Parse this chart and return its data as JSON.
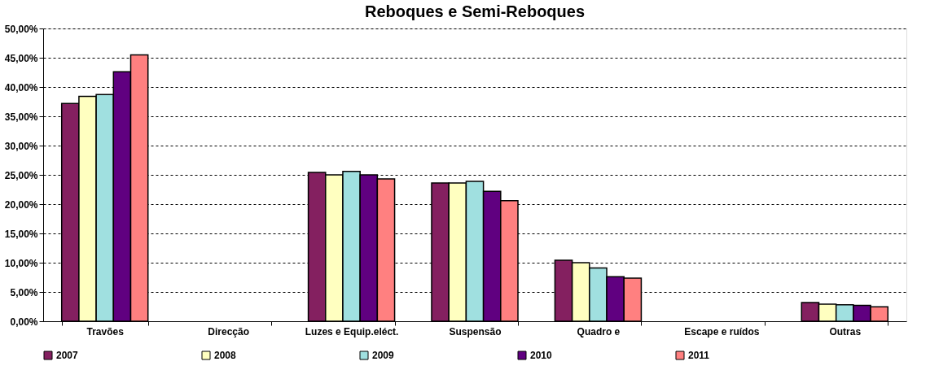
{
  "chart_data": {
    "type": "bar",
    "title": "Reboques e Semi-Reboques",
    "categories": [
      "Travões",
      "Direcção",
      "Luzes e Equip.eléct.",
      "Suspensão",
      "Quadro e",
      "Escape e ruídos",
      "Outras"
    ],
    "series": [
      {
        "name": "2007",
        "color": "#842060",
        "values": [
          37.2,
          null,
          25.4,
          23.6,
          10.4,
          null,
          3.2
        ]
      },
      {
        "name": "2008",
        "color": "#ffffc0",
        "values": [
          38.4,
          null,
          25.0,
          23.6,
          10.0,
          null,
          2.9
        ]
      },
      {
        "name": "2009",
        "color": "#a0e0e0",
        "values": [
          38.7,
          null,
          25.6,
          23.9,
          9.1,
          null,
          2.8
        ]
      },
      {
        "name": "2010",
        "color": "#600080",
        "values": [
          42.6,
          null,
          25.0,
          22.2,
          7.6,
          null,
          2.7
        ]
      },
      {
        "name": "2011",
        "color": "#ff8080",
        "values": [
          45.5,
          null,
          24.3,
          20.6,
          7.35,
          null,
          2.45
        ]
      }
    ],
    "ylim": [
      0,
      50
    ],
    "yticks": [
      {
        "value": 0,
        "label": "0,00%"
      },
      {
        "value": 5,
        "label": "5,00%"
      },
      {
        "value": 10,
        "label": "10,00%"
      },
      {
        "value": 15,
        "label": "15,00%"
      },
      {
        "value": 20,
        "label": "20,00%"
      },
      {
        "value": 25,
        "label": "25,00%"
      },
      {
        "value": 30,
        "label": "30,00%"
      },
      {
        "value": 35,
        "label": "35,00%"
      },
      {
        "value": 40,
        "label": "40,00%"
      },
      {
        "value": 45,
        "label": "45,00%"
      },
      {
        "value": 50,
        "label": "50,00%"
      }
    ],
    "grid": "y",
    "legend": "bottom"
  }
}
